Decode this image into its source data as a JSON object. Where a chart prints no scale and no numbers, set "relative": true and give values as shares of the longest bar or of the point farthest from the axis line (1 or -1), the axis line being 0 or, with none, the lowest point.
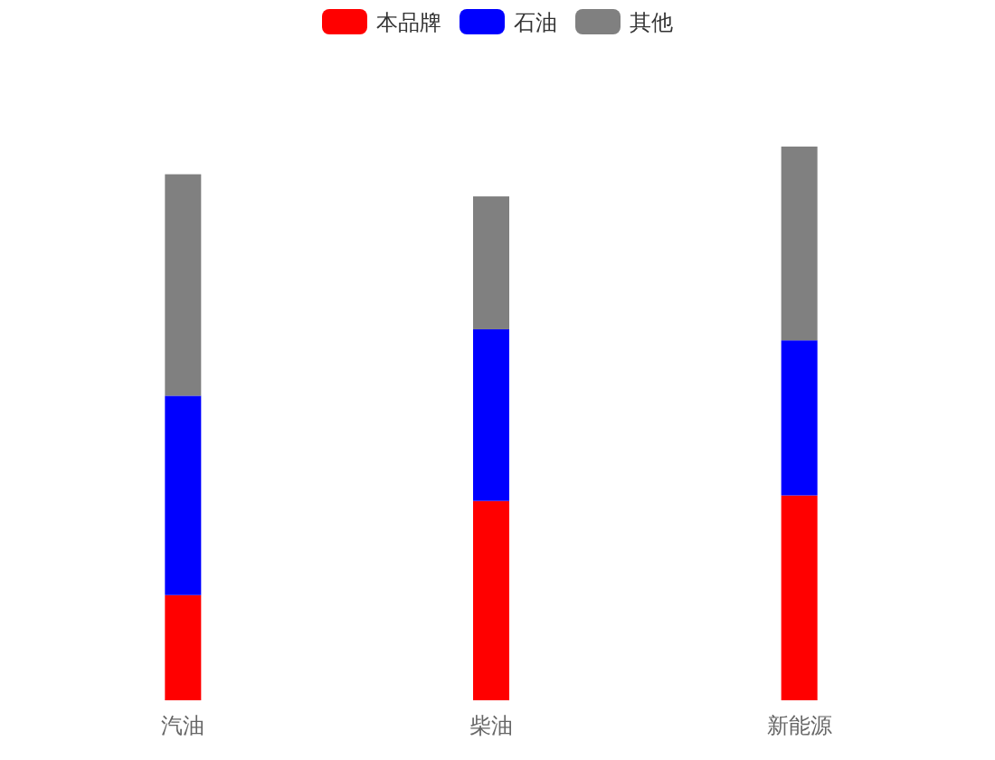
{
  "chart_data": {
    "type": "bar",
    "stacked": true,
    "relative": true,
    "legend": "top",
    "categories": [
      "汽油",
      "柴油",
      "新能源"
    ],
    "series": [
      {
        "name": "本品牌",
        "color": "#ff0000",
        "values": [
          0.19,
          0.36,
          0.37
        ]
      },
      {
        "name": "石油",
        "color": "#0000ff",
        "values": [
          0.36,
          0.31,
          0.28
        ]
      },
      {
        "name": "其他",
        "color": "#808080",
        "values": [
          0.4,
          0.24,
          0.35
        ]
      }
    ]
  }
}
